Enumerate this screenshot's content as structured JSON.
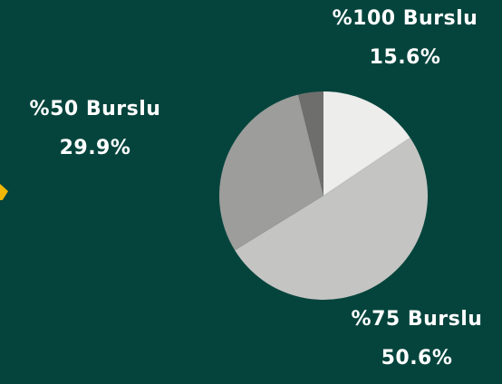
{
  "chart_data": {
    "type": "pie",
    "slices": [
      {
        "label": "%100 Burslu",
        "value": 15.6,
        "value_label": "15.6%",
        "color": "#ededeb"
      },
      {
        "label": "%75 Burslu",
        "value": 50.6,
        "value_label": "50.6%",
        "color": "#c4c4c2"
      },
      {
        "label": "%50 Burslu",
        "value": 29.9,
        "value_label": "29.9%",
        "color": "#9d9d9b"
      },
      {
        "label": "",
        "value": 3.9,
        "value_label": "",
        "color": "#6e6e6c"
      }
    ]
  },
  "colors": {
    "background": "#04443c",
    "accent": "#f2b705",
    "label_text": "#ffffff"
  }
}
